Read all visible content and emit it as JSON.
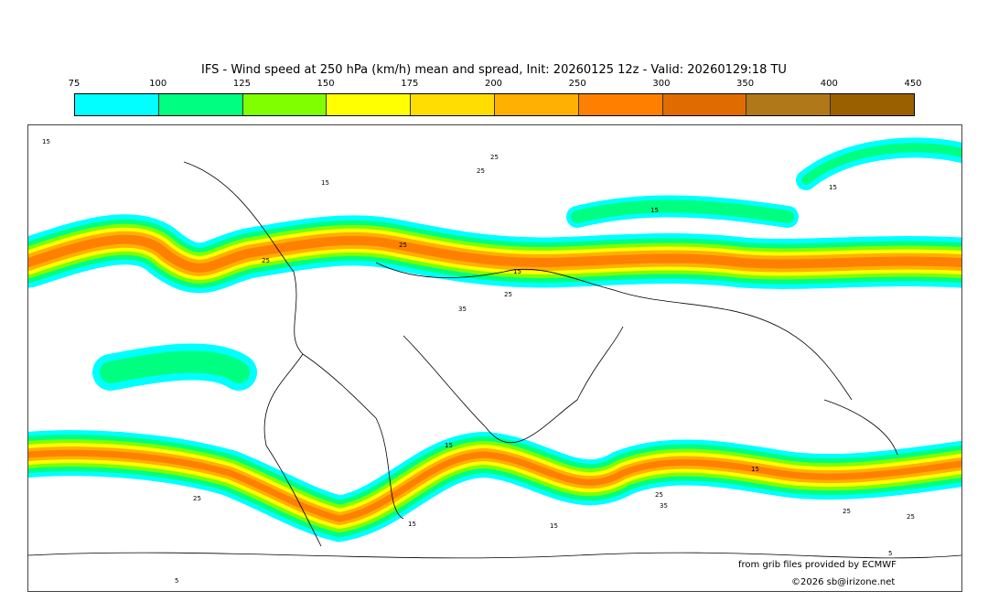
{
  "title": "IFS - Wind speed at 250 hPa (km/h) mean and spread, Init: 20260125 12z - Valid: 20260129:18 TU",
  "legend": {
    "ticks": [
      "75",
      "100",
      "125",
      "150",
      "175",
      "200",
      "250",
      "300",
      "350",
      "400",
      "450"
    ],
    "colors": [
      "#00ffff",
      "#00ff80",
      "#80ff00",
      "#ffff00",
      "#ffdd00",
      "#ffb000",
      "#ff8000",
      "#e06c00",
      "#b07818",
      "#9a6000"
    ]
  },
  "contour_labels": [
    "15",
    "25",
    "15",
    "25",
    "15",
    "25",
    "25",
    "15",
    "25",
    "35",
    "15",
    "25",
    "15",
    "35",
    "25",
    "15",
    "25",
    "15",
    "15",
    "25",
    "5",
    "5"
  ],
  "credits": {
    "source": "from grib files provided by ECMWF",
    "copyright": "©2026 sb@irizone.net"
  }
}
